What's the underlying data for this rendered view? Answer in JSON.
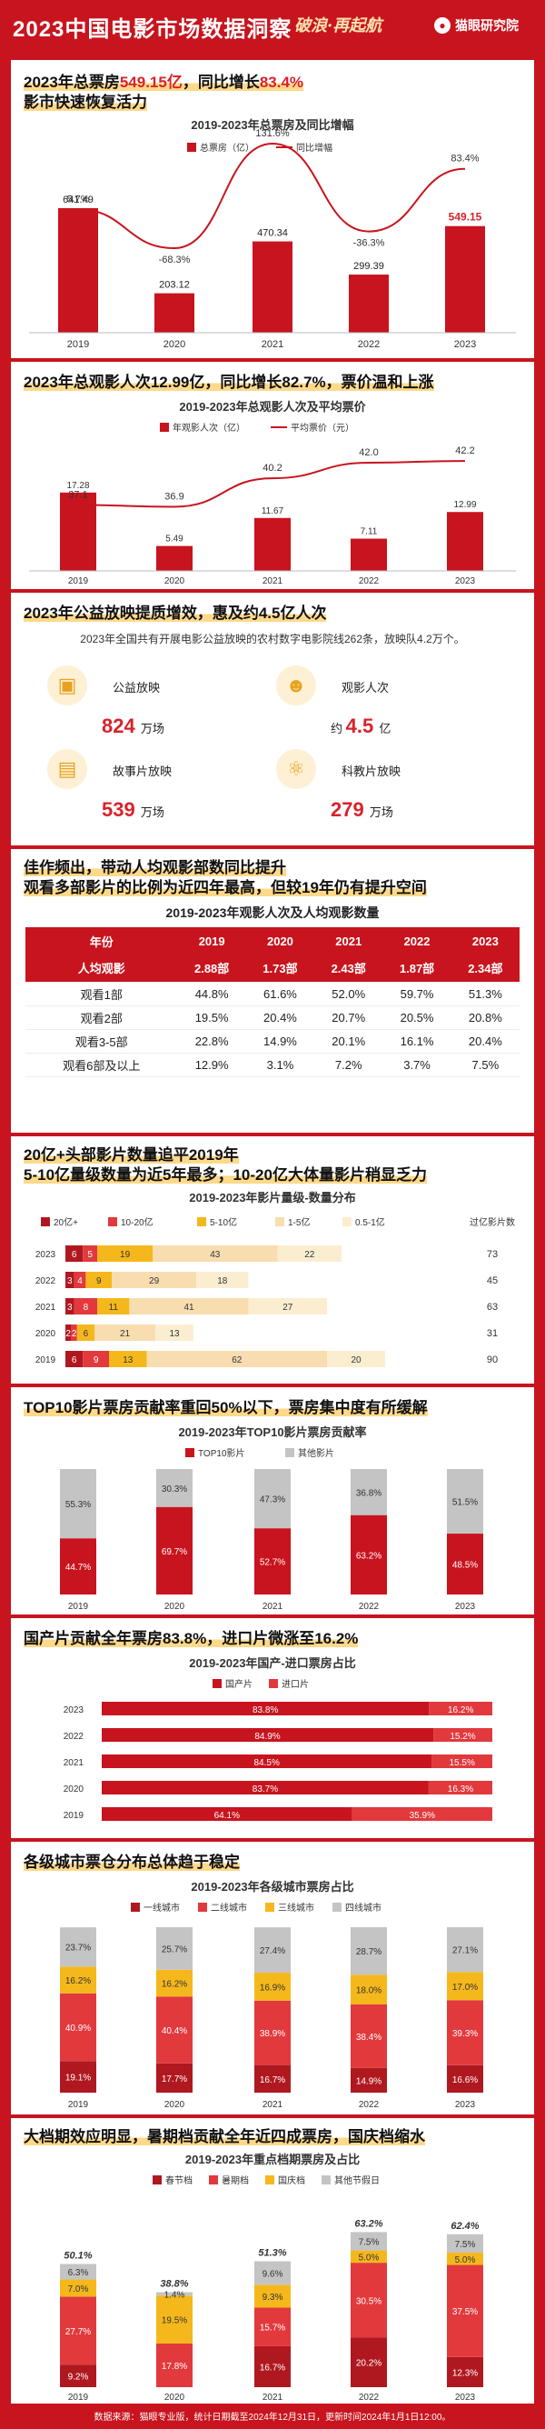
{
  "header": {
    "title": "2023中国电影市场数据洞察",
    "slogan": "破浪·再起航",
    "brand": "猫眼研究院"
  },
  "colors": {
    "red": "#c8141e",
    "deep": "#b01820",
    "mid": "#e2393d",
    "yellow": "#f5b81c",
    "pale": "#f8ddb0",
    "gray": "#c4c4c4",
    "cream": "#fbeed0"
  },
  "s1": {
    "h1": "2023年总票房",
    "h1v": "549.15亿",
    "h1b": "，同比增长",
    "h1p": "83.4%",
    "h2": "影市快速恢复活力"
  },
  "s2": {
    "h": "2023年总观影人次12.99亿，同比增长82.7%，票价温和上涨"
  },
  "s3": {
    "h": "2023年公益放映提质增效，惠及约4.5亿人次",
    "note": "2023年全国共有开展电影公益放映的农村数字电影院线262条，放映队4.2万个。",
    "items": [
      {
        "icon": "film-icon",
        "label": "公益放映",
        "value": "824",
        "unit": "万场",
        "pre": ""
      },
      {
        "icon": "people-icon",
        "label": "观影人次",
        "value": "4.5",
        "unit": "亿",
        "pre": "约"
      },
      {
        "icon": "document-icon",
        "label": "故事片放映",
        "value": "539",
        "unit": "万场",
        "pre": ""
      },
      {
        "icon": "science-icon",
        "label": "科教片放映",
        "value": "279",
        "unit": "万场",
        "pre": ""
      }
    ]
  },
  "s4": {
    "h1": "佳作频出，带动人均观影部数同比提升",
    "h2": "观看多部影片的比例为近四年最高，但较19年仍有提升空间",
    "title": "2019-2023年观影人次及人均观影数量",
    "header": [
      "年份",
      "2019",
      "2020",
      "2021",
      "2022",
      "2023"
    ],
    "rows": [
      [
        "人均观影",
        "2.88部",
        "1.73部",
        "2.43部",
        "1.87部",
        "2.34部"
      ],
      [
        "观看1部",
        "44.8%",
        "61.6%",
        "52.0%",
        "59.7%",
        "51.3%"
      ],
      [
        "观看2部",
        "19.5%",
        "20.4%",
        "20.7%",
        "20.5%",
        "20.8%"
      ],
      [
        "观看3-5部",
        "22.8%",
        "14.9%",
        "20.1%",
        "16.1%",
        "20.4%"
      ],
      [
        "观看6部及以上",
        "12.9%",
        "3.1%",
        "7.2%",
        "3.7%",
        "7.5%"
      ]
    ]
  },
  "s5": {
    "h1": "20亿+头部影片数量追平2019年",
    "h2": "5-10亿量级数量为近5年最多；10-20亿大体量影片稍显乏力",
    "total_label": "过亿影片数"
  },
  "s6": {
    "h": "TOP10影片票房贡献率重回50%以下，票房集中度有所缓解"
  },
  "s7": {
    "h": "国产片贡献全年票房83.8%，进口片微涨至16.2%"
  },
  "s8": {
    "h": "各级城市票仓分布总体趋于稳定"
  },
  "s9": {
    "h": "大档期效应明显，暑期档贡献全年近四成票房，国庆档缩水"
  },
  "footer": "数据来源：猫眼专业版，统计日期截至2024年12月31日，更新时间2024年1月1日12:00。",
  "chart_data": [
    {
      "type": "bar",
      "title": "2019-2023年总票房及同比增幅",
      "categories": [
        "2019",
        "2020",
        "2021",
        "2022",
        "2023"
      ],
      "series": [
        {
          "name": "总票房（亿）",
          "values": [
            641.49,
            203.12,
            470.34,
            299.39,
            549.15
          ]
        },
        {
          "name": "同比增幅",
          "type": "line",
          "values": [
            "5.7%",
            "-68.3%",
            "131.6%",
            "-36.3%",
            "83.4%"
          ]
        }
      ]
    },
    {
      "type": "bar",
      "title": "2019-2023年总观影人次及平均票价",
      "categories": [
        "2019",
        "2020",
        "2021",
        "2022",
        "2023"
      ],
      "series": [
        {
          "name": "年观影人次（亿）",
          "values": [
            17.28,
            5.49,
            11.67,
            7.11,
            12.99
          ]
        },
        {
          "name": "平均票价（元）",
          "type": "line",
          "values": [
            37.1,
            36.9,
            40.2,
            42.0,
            42.2
          ]
        }
      ]
    },
    {
      "type": "bar",
      "title": "2019-2023年影片量级-数量分布",
      "categories": [
        "2023",
        "2022",
        "2021",
        "2020",
        "2019"
      ],
      "series": [
        {
          "name": "20亿+",
          "values": [
            6,
            3,
            3,
            2,
            6
          ]
        },
        {
          "name": "10-20亿",
          "values": [
            5,
            4,
            8,
            2,
            9
          ]
        },
        {
          "name": "5-10亿",
          "values": [
            19,
            9,
            11,
            6,
            13
          ]
        },
        {
          "name": "1-5亿",
          "values": [
            43,
            29,
            41,
            21,
            62
          ]
        },
        {
          "name": "0.5-1亿",
          "values": [
            22,
            18,
            27,
            13,
            20
          ]
        }
      ],
      "totals": [
        73,
        45,
        63,
        31,
        90
      ]
    },
    {
      "type": "bar",
      "title": "2019-2023年TOP10影片票房贡献率",
      "categories": [
        "2019",
        "2020",
        "2021",
        "2022",
        "2023"
      ],
      "series": [
        {
          "name": "TOP10影片",
          "values": [
            "44.7%",
            "69.7%",
            "52.7%",
            "63.2%",
            "48.5%"
          ]
        },
        {
          "name": "其他影片",
          "values": [
            "55.3%",
            "30.3%",
            "47.3%",
            "36.8%",
            "51.5%"
          ]
        }
      ]
    },
    {
      "type": "bar",
      "title": "2019-2023年国产-进口票房占比",
      "categories": [
        "2023",
        "2022",
        "2021",
        "2020",
        "2019"
      ],
      "series": [
        {
          "name": "国产片",
          "values": [
            "83.8%",
            "84.9%",
            "84.5%",
            "83.7%",
            "64.1%"
          ]
        },
        {
          "name": "进口片",
          "values": [
            "16.2%",
            "15.2%",
            "15.5%",
            "16.3%",
            "35.9%"
          ]
        }
      ]
    },
    {
      "type": "bar",
      "title": "2019-2023年各级城市票房占比",
      "categories": [
        "2019",
        "2020",
        "2021",
        "2022",
        "2023"
      ],
      "series": [
        {
          "name": "一线城市",
          "values": [
            "19.1%",
            "17.7%",
            "16.7%",
            "14.9%",
            "16.6%"
          ]
        },
        {
          "name": "二线城市",
          "values": [
            "40.9%",
            "40.4%",
            "38.9%",
            "38.4%",
            "39.3%"
          ]
        },
        {
          "name": "三线城市",
          "values": [
            "16.2%",
            "16.2%",
            "16.9%",
            "18.0%",
            "17.0%"
          ]
        },
        {
          "name": "四线城市",
          "values": [
            "23.7%",
            "25.7%",
            "27.4%",
            "28.7%",
            "27.1%"
          ]
        }
      ]
    },
    {
      "type": "bar",
      "title": "2019-2023年重点档期票房及占比",
      "categories": [
        "2019",
        "2020",
        "2021",
        "2022",
        "2023"
      ],
      "totals": [
        "50.1%",
        "38.8%",
        "51.3%",
        "63.2%",
        "62.4%"
      ],
      "series": [
        {
          "name": "春节档",
          "values": [
            "9.2%",
            "",
            "16.7%",
            "20.2%",
            "12.3%"
          ]
        },
        {
          "name": "暑期档",
          "values": [
            "27.7%",
            "17.8%",
            "15.7%",
            "30.5%",
            "37.5%"
          ]
        },
        {
          "name": "国庆档",
          "values": [
            "7.0%",
            "19.5%",
            "9.3%",
            "5.0%",
            "5.0%"
          ]
        },
        {
          "name": "其他节假日",
          "values": [
            "6.3%",
            "1.4%",
            "9.6%",
            "7.5%",
            "7.5%"
          ]
        }
      ]
    }
  ]
}
